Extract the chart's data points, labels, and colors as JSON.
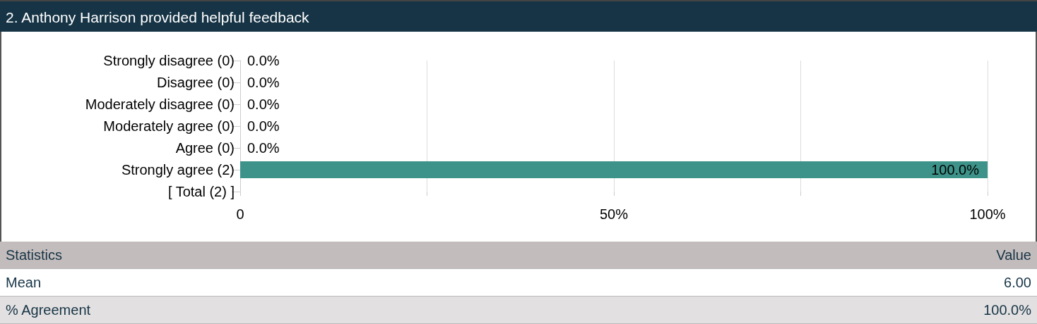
{
  "chart_data": {
    "type": "bar",
    "orientation": "horizontal",
    "title": "2. Anthony Harrison provided helpful feedback",
    "categories": [
      "Strongly disagree (0)",
      "Disagree (0)",
      "Moderately disagree (0)",
      "Moderately agree (0)",
      "Agree (0)",
      "Strongly agree (2)",
      "[ Total (2) ]"
    ],
    "values": [
      0,
      0,
      0,
      0,
      0,
      100,
      null
    ],
    "value_labels": [
      "0.0%",
      "0.0%",
      "0.0%",
      "0.0%",
      "0.0%",
      "100.0%",
      null
    ],
    "color": "#3d9389",
    "xlim": [
      0,
      100
    ],
    "xticks": [
      0,
      {
        "value": 25,
        "label": null
      },
      {
        "value": 50,
        "label": "50%"
      },
      {
        "value": 75,
        "label": null
      },
      {
        "value": 100,
        "label": "100%"
      }
    ],
    "grid": "x",
    "annotations": [
      "Statistics",
      "Value",
      "Mean",
      "6.00",
      "% Agreement",
      "100.0%"
    ]
  }
}
